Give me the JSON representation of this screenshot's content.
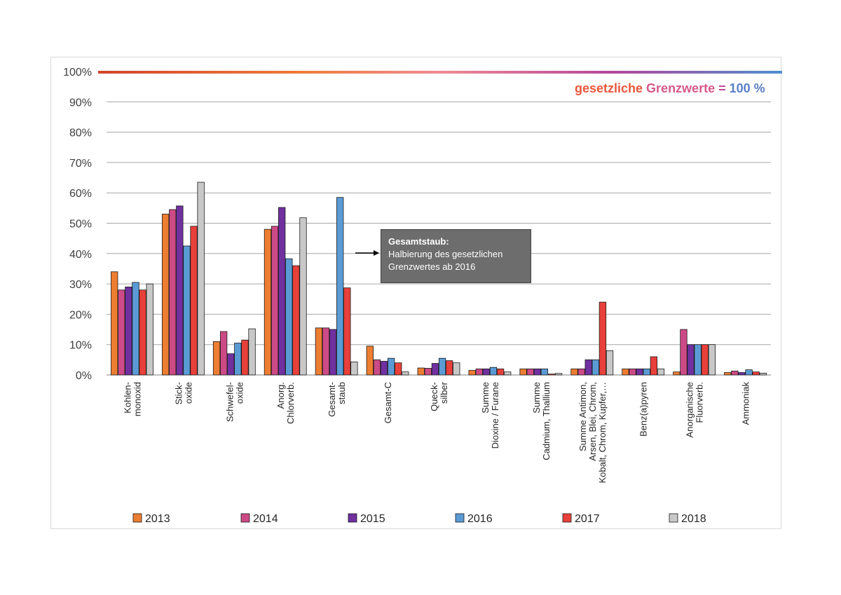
{
  "chart_data": {
    "type": "bar",
    "categories": [
      [
        "Kohlen-",
        "monoxid"
      ],
      [
        "Stick-",
        "oxide"
      ],
      [
        "Schwefel-",
        "oxide"
      ],
      [
        "Anorg.",
        "Chlorverb."
      ],
      [
        "Gesamt-",
        "staub"
      ],
      [
        "Gesamt-C"
      ],
      [
        "Queck-",
        "silber"
      ],
      [
        "Summe",
        "Dioxine / Furane"
      ],
      [
        "Summe",
        "Cadmium, Thallium"
      ],
      [
        "Summe Antimon,",
        "Arsen, Blei, Chrom,",
        "Kobalt, Chrom, Kupfer,…"
      ],
      [
        "Benz(a)pyren"
      ],
      [
        "Anorganische",
        "Fluorverb."
      ],
      [
        "Ammoniak"
      ]
    ],
    "series": [
      {
        "name": "2013",
        "color": "#ed7d31",
        "values": [
          34,
          53,
          11,
          48,
          15.5,
          9.5,
          2.3,
          1.5,
          2,
          2,
          2,
          1,
          0.8
        ]
      },
      {
        "name": "2014",
        "color": "#cc4a86",
        "values": [
          28,
          54.5,
          14.3,
          49,
          15.5,
          5,
          2.2,
          2,
          2,
          2,
          2,
          15,
          1.3
        ]
      },
      {
        "name": "2015",
        "color": "#7030a0",
        "values": [
          29,
          55.7,
          7,
          55.2,
          15,
          4.5,
          3.8,
          2,
          2,
          5,
          2,
          10,
          0.8
        ]
      },
      {
        "name": "2016",
        "color": "#5b9bd5",
        "values": [
          30.5,
          42.5,
          10.5,
          38.3,
          58.5,
          5.5,
          5.5,
          2.5,
          2,
          5,
          2,
          10,
          1.7
        ]
      },
      {
        "name": "2017",
        "color": "#e8403a",
        "values": [
          28,
          49,
          11.5,
          36,
          28.7,
          4,
          4.7,
          2,
          0.3,
          24,
          6,
          10,
          1
        ]
      },
      {
        "name": "2018",
        "color": "#c8c8c8",
        "values": [
          30,
          63.5,
          15.2,
          51.8,
          4.3,
          1,
          4,
          1,
          0.5,
          8,
          2,
          10,
          0.6
        ]
      }
    ],
    "ylim": [
      0,
      100
    ],
    "yticks": [
      "0%",
      "10%",
      "20%",
      "30%",
      "40%",
      "50%",
      "60%",
      "70%",
      "80%",
      "90%",
      "100%"
    ],
    "grid": true,
    "legend_position": "bottom",
    "limit_line": {
      "value": 100,
      "label_parts": [
        {
          "text": "gesetzliche ",
          "color": "#e8573a"
        },
        {
          "text": "Grenzwerte",
          "color": "#d65a8a"
        },
        {
          "text": " = ",
          "color": "#c04a98"
        },
        {
          "text": "100 %",
          "color": "#5b7fc8"
        }
      ]
    },
    "annotation": {
      "title": "Gesamtstaub:",
      "lines": [
        "Halbierung des gesetzlichen",
        "Grenzwertes ab 2016"
      ]
    }
  }
}
